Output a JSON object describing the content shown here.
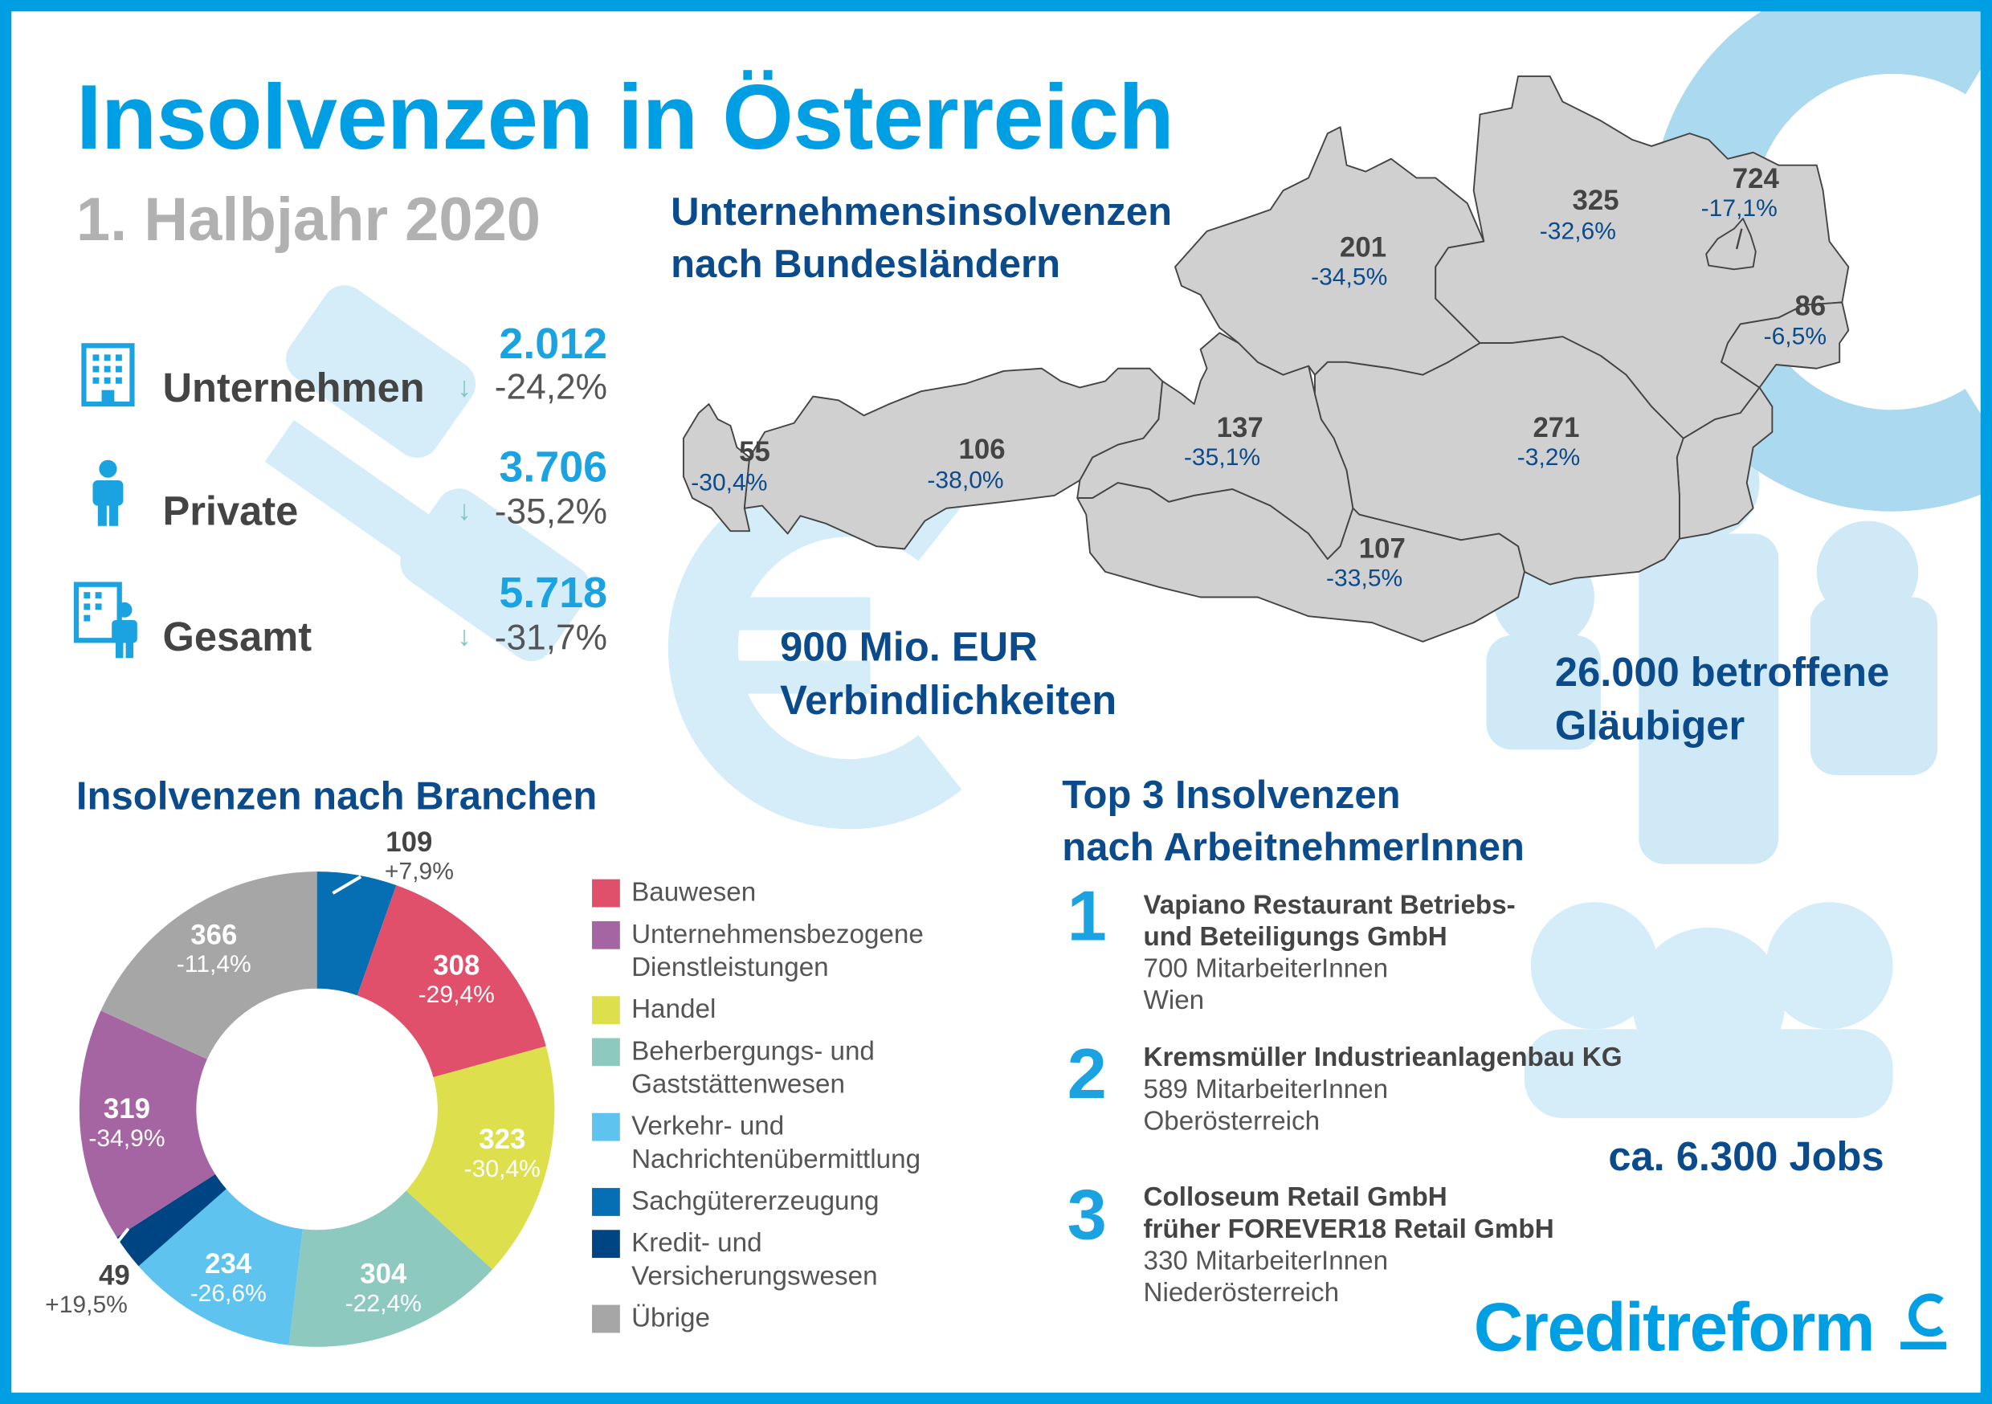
{
  "title": "Insolvenzen in Österreich",
  "subtitle": "1. Halbjahr 2020",
  "colors": {
    "accent": "#009fe3",
    "dark_blue": "#0b4b8c",
    "map_fill": "#d0d0d0",
    "arrow": "#7fc8bf",
    "decor": "#d4edf9"
  },
  "stats": [
    {
      "label": "Unternehmen",
      "value": "2.012",
      "change": "-24,2%",
      "icon": "building-icon",
      "trend": "down"
    },
    {
      "label": "Private",
      "value": "3.706",
      "change": "-35,2%",
      "icon": "person-icon",
      "trend": "down"
    },
    {
      "label": "Gesamt",
      "value": "5.718",
      "change": "-31,7%",
      "icon": "building-person-icon",
      "trend": "down"
    }
  ],
  "map": {
    "title_line1": "Unternehmensinsolvenzen",
    "title_line2": "nach Bundesländern",
    "regions": [
      {
        "value": "55",
        "change": "-30,4%"
      },
      {
        "value": "106",
        "change": "-38,0%"
      },
      {
        "value": "137",
        "change": "-35,1%"
      },
      {
        "value": "201",
        "change": "-34,5%"
      },
      {
        "value": "325",
        "change": "-32,6%"
      },
      {
        "value": "724",
        "change": "-17,1%"
      },
      {
        "value": "86",
        "change": "-6,5%"
      },
      {
        "value": "271",
        "change": "-3,2%"
      },
      {
        "value": "107",
        "change": "-33,5%"
      }
    ]
  },
  "liabilities": {
    "line1": "900 Mio. EUR",
    "line2": "Verbindlichkeiten"
  },
  "creditors": {
    "line1": "26.000 betroffene",
    "line2": "Gläubiger"
  },
  "jobs": "ca. 6.300 Jobs",
  "branches": {
    "title": "Insolvenzen nach Branchen"
  },
  "chart_data": {
    "type": "pie",
    "variant": "donut",
    "title": "Insolvenzen nach Branchen",
    "categories": [
      [
        "Bauwesen"
      ],
      [
        "Unternehmensbezogene",
        "Dienstleistungen"
      ],
      [
        "Handel"
      ],
      [
        "Beherbergungs- und",
        "Gaststättenwesen"
      ],
      [
        "Verkehr- und",
        "Nachrichtenübermittlung"
      ],
      [
        "Sachgütererzeugung"
      ],
      [
        "Kredit- und",
        "Versicherungswesen"
      ],
      [
        "Übrige"
      ]
    ],
    "values": [
      308,
      319,
      323,
      304,
      234,
      109,
      49,
      366
    ],
    "changes": [
      "-29,4%",
      "-34,9%",
      "-30,4%",
      "-22,4%",
      "-26,6%",
      "+7,9%",
      "+19,5%",
      "-11,4%"
    ],
    "colors": [
      "#e0506a",
      "#a564a2",
      "#dde04c",
      "#8ec9c0",
      "#5fc3ef",
      "#066eb3",
      "#004583",
      "#a6a6a6"
    ],
    "legend": "right"
  },
  "top3": {
    "title_line1": "Top 3 Insolvenzen",
    "title_line2": "nach ArbeitnehmerInnen",
    "items": [
      {
        "rank": "1",
        "name1": "Vapiano Restaurant Betriebs-",
        "name2": "und Beteiligungs GmbH",
        "employees": "700 MitarbeiterInnen",
        "location": "Wien"
      },
      {
        "rank": "2",
        "name1": "Kremsmüller Industrieanlagenbau KG",
        "name2": "",
        "employees": "589 MitarbeiterInnen",
        "location": "Oberösterreich"
      },
      {
        "rank": "3",
        "name1": "Colloseum Retail GmbH",
        "name2": "früher FOREVER18 Retail GmbH",
        "employees": "330 MitarbeiterInnen",
        "location": "Niederösterreich"
      }
    ]
  },
  "logo": "Creditreform"
}
